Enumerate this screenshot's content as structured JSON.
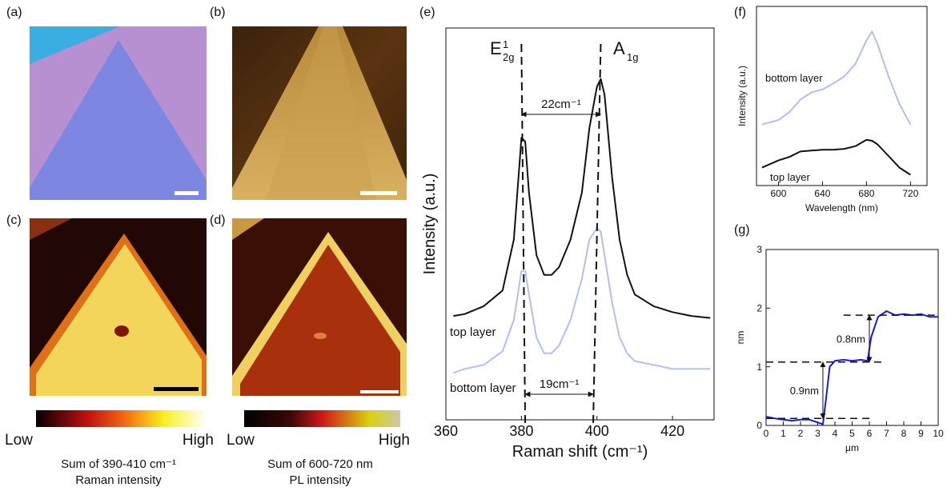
{
  "panel_labels": [
    "(a)",
    "(b)",
    "(c)",
    "(d)",
    "(e)",
    "(f)",
    "(g)"
  ],
  "colorbars": [
    {
      "low": "Low",
      "high": "High",
      "caption": [
        "Sum of 390-410 cm⁻¹",
        "Raman intensity"
      ]
    },
    {
      "low": "Low",
      "high": "High",
      "caption": [
        "Sum of 600-720 nm",
        "PL intensity"
      ]
    }
  ],
  "chart_data": [
    {
      "type": "line",
      "x_label": "Raman shift (cm⁻¹)",
      "y_label": "Intensity (a.u.)",
      "xlim": [
        360,
        431
      ],
      "xticks": [
        360,
        380,
        400,
        420
      ],
      "ylim": [
        0,
        100
      ],
      "x": [
        362,
        365,
        370,
        375,
        378,
        380,
        381,
        382,
        384,
        386,
        388,
        390,
        393,
        396,
        398,
        400,
        401,
        402,
        404,
        406,
        408,
        410,
        415,
        420,
        425,
        430
      ],
      "series": [
        {
          "name": "top layer",
          "color": "#111111",
          "values": [
            26.5,
            27,
            29,
            33,
            46,
            72,
            71,
            58,
            42,
            37,
            37,
            39,
            46,
            58,
            74.5,
            85,
            87,
            83,
            62,
            46,
            37,
            32,
            29,
            27.5,
            26.5,
            26
          ]
        },
        {
          "name": "bottom layer",
          "color": "#b4bff0",
          "values": [
            12,
            13,
            14,
            17.5,
            25.5,
            38,
            38,
            32,
            21,
            17,
            17,
            19,
            25.5,
            36,
            46,
            49,
            48,
            42,
            30,
            21,
            17,
            15,
            14,
            13,
            13,
            13
          ]
        }
      ],
      "peak_labels": [
        {
          "base": "E",
          "sub": "2g",
          "sup": "1"
        },
        {
          "base": "A",
          "sub": "1g"
        }
      ],
      "shift_markers": [
        {
          "label": "22cm⁻¹",
          "x": [
            380,
            401
          ]
        },
        {
          "label": "19cm⁻¹",
          "x": [
            381,
            399
          ]
        }
      ]
    },
    {
      "type": "line",
      "x_label": "Wavelength (nm)",
      "y_label": "Intensity (a.u.)",
      "xlim": [
        580,
        735
      ],
      "xticks": [
        600,
        640,
        680,
        720
      ],
      "ylim": [
        0,
        100
      ],
      "x": [
        585,
        600,
        610,
        620,
        630,
        640,
        650,
        660,
        670,
        680,
        685,
        690,
        700,
        710,
        720
      ],
      "series": [
        {
          "name": "bottom layer",
          "color": "#b4bff0",
          "values": [
            34,
            36.6,
            41,
            48,
            52,
            53.6,
            57,
            61,
            68,
            81,
            86,
            79,
            61,
            45.5,
            34
          ]
        },
        {
          "name": "top layer",
          "color": "#111111",
          "values": [
            10,
            14,
            16,
            19,
            19.5,
            20,
            20,
            20.5,
            22,
            25.5,
            25,
            23,
            16.5,
            10,
            6
          ]
        }
      ]
    },
    {
      "type": "line",
      "x_label": "μm",
      "y_label": "nm",
      "xlim": [
        0,
        10
      ],
      "xticks": [
        0,
        1,
        2,
        3,
        4,
        5,
        6,
        7,
        8,
        9,
        10
      ],
      "ylim": [
        0,
        3
      ],
      "yticks": [
        0,
        1,
        2,
        3
      ],
      "x": [
        0,
        0.5,
        1,
        1.5,
        2,
        2.5,
        3,
        3.3,
        3.5,
        3.7,
        4,
        4.5,
        5,
        5.5,
        5.9,
        6.1,
        6.5,
        7,
        7.5,
        8,
        8.5,
        9,
        9.5,
        10
      ],
      "series": [
        {
          "color": "#1a1adb",
          "values": [
            0.15,
            0.12,
            0.1,
            0.08,
            0.1,
            0.1,
            0.05,
            0.02,
            0.5,
            1.0,
            1.1,
            1.12,
            1.1,
            1.12,
            1.1,
            1.5,
            1.85,
            1.95,
            1.88,
            1.9,
            1.88,
            1.9,
            1.85,
            1.85
          ]
        }
      ],
      "levels": [
        {
          "y": 0.12,
          "x": [
            0,
            6
          ]
        },
        {
          "y": 1.08,
          "x": [
            0,
            6.8
          ]
        },
        {
          "y": 1.88,
          "x": [
            4.5,
            10
          ]
        }
      ],
      "step_annotations": [
        {
          "label": "0.9nm",
          "x": 3.3,
          "y": [
            0.12,
            1.08
          ]
        },
        {
          "label": "0.8nm",
          "x": 6,
          "y": [
            1.08,
            1.88
          ]
        }
      ]
    }
  ]
}
